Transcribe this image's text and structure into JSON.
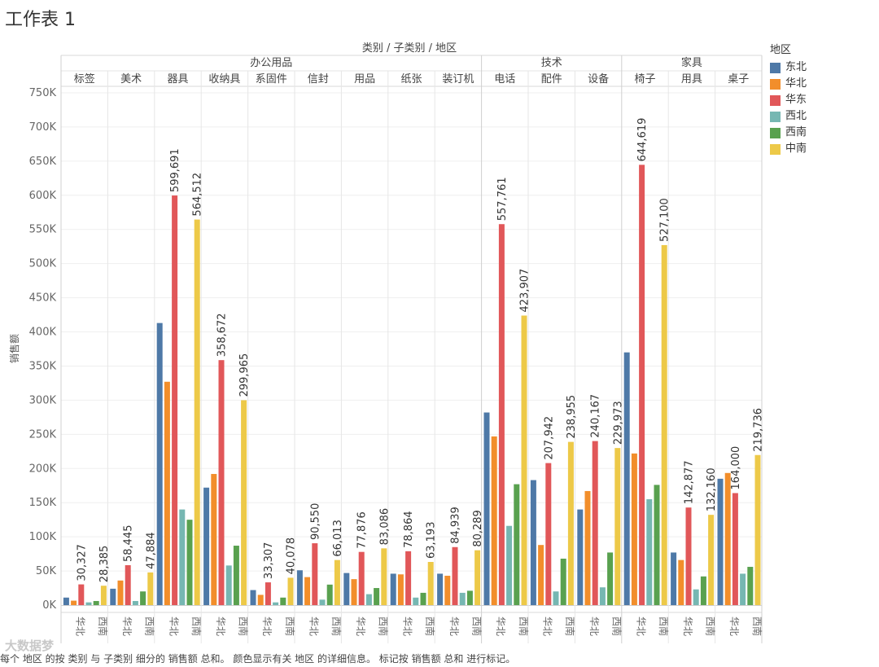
{
  "sheet_title": "工作表 1",
  "caption": "每个 地区 的按 类别 与 子类别 细分的 销售额 总和。 颜色显示有关 地区 的详细信息。 标记按 销售额 总和 进行标记。",
  "watermark": "大数据梦",
  "legend": {
    "title": "地区",
    "items": [
      {
        "label": "东北",
        "color": "#4e79a7"
      },
      {
        "label": "华北",
        "color": "#f28e2b"
      },
      {
        "label": "华东",
        "color": "#e15759"
      },
      {
        "label": "西北",
        "color": "#76b7b2"
      },
      {
        "label": "西南",
        "color": "#59a14f"
      },
      {
        "label": "中南",
        "color": "#edc948"
      }
    ]
  },
  "chart_data": {
    "type": "bar",
    "header_title": "类别 / 子类别 / 地区",
    "ylabel": "销售额",
    "ylim": [
      0,
      750000
    ],
    "yticks": [
      0,
      50000,
      100000,
      150000,
      200000,
      250000,
      300000,
      350000,
      400000,
      450000,
      500000,
      550000,
      600000,
      650000,
      700000,
      750000
    ],
    "ytick_labels": [
      "0K",
      "50K",
      "100K",
      "150K",
      "200K",
      "250K",
      "300K",
      "350K",
      "400K",
      "450K",
      "500K",
      "550K",
      "600K",
      "650K",
      "700K",
      "750K"
    ],
    "region_tick_labels": [
      "华北",
      "西南"
    ],
    "series_names": [
      "东北",
      "华北",
      "华东",
      "西北",
      "西南",
      "中南"
    ],
    "labeled_series": [
      "华东",
      "中南"
    ],
    "categories": [
      {
        "name": "办公用品",
        "subcategories": [
          {
            "name": "标签",
            "values": [
              11000,
              6500,
              30327,
              4000,
              6000,
              28385
            ]
          },
          {
            "name": "美术",
            "values": [
              24000,
              36000,
              58445,
              6000,
              20000,
              47884
            ]
          },
          {
            "name": "器具",
            "values": [
              413000,
              327000,
              599691,
              140000,
              125000,
              564512
            ]
          },
          {
            "name": "收纳具",
            "values": [
              172000,
              192000,
              358672,
              58000,
              87000,
              299965
            ]
          },
          {
            "name": "系固件",
            "values": [
              22000,
              15000,
              33307,
              4000,
              11000,
              40078
            ]
          },
          {
            "name": "信封",
            "values": [
              51000,
              41000,
              90550,
              8000,
              30000,
              66013
            ]
          },
          {
            "name": "用品",
            "values": [
              47000,
              38000,
              77876,
              16000,
              25000,
              83086
            ]
          },
          {
            "name": "纸张",
            "values": [
              46000,
              45000,
              78864,
              11000,
              18000,
              63193
            ]
          },
          {
            "name": "装订机",
            "values": [
              46000,
              43000,
              84939,
              18000,
              21000,
              80289
            ]
          }
        ]
      },
      {
        "name": "技术",
        "subcategories": [
          {
            "name": "电话",
            "values": [
              282000,
              247000,
              557761,
              116000,
              177000,
              423907
            ]
          },
          {
            "name": "配件",
            "values": [
              183000,
              88000,
              207942,
              20000,
              68000,
              238955
            ]
          },
          {
            "name": "设备",
            "values": [
              140000,
              167000,
              240167,
              26000,
              77000,
              229973
            ]
          }
        ]
      },
      {
        "name": "家具",
        "subcategories": [
          {
            "name": "椅子",
            "values": [
              370000,
              222000,
              644619,
              155000,
              176000,
              527100
            ]
          },
          {
            "name": "用具",
            "values": [
              77000,
              66000,
              142877,
              23000,
              42000,
              132160
            ]
          },
          {
            "name": "桌子",
            "values": [
              185000,
              193424,
              164000,
              46000,
              56000,
              219736
            ]
          }
        ]
      }
    ]
  }
}
